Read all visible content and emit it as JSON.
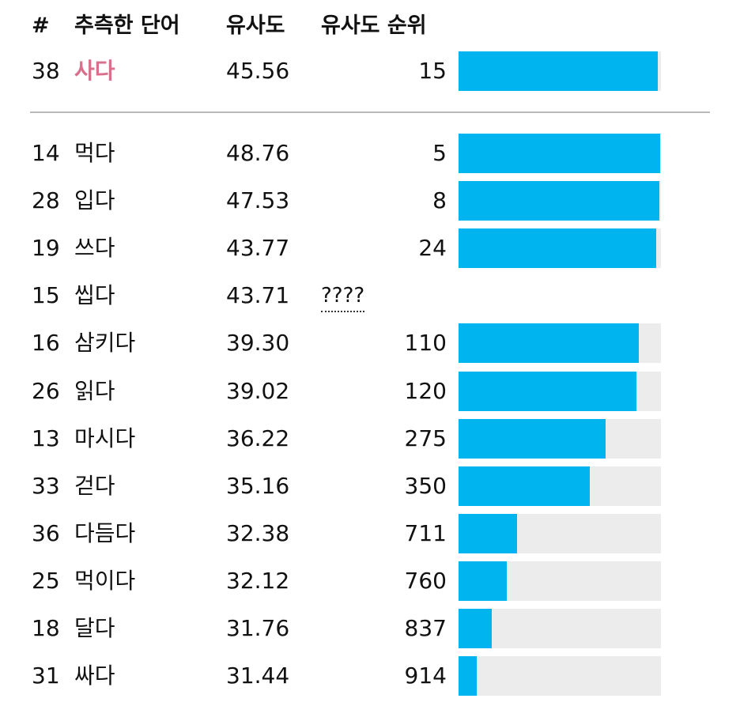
{
  "header": {
    "num": "#",
    "word": "추측한 단어",
    "similarity": "유사도",
    "rank": "유사도 순위"
  },
  "current_guess": {
    "num": "38",
    "word": "사다",
    "similarity": "45.56",
    "rank": "15",
    "bar_fraction": 0.985
  },
  "guesses": [
    {
      "num": "14",
      "word": "먹다",
      "similarity": "48.76",
      "rank": "5",
      "bar_fraction": 0.995
    },
    {
      "num": "28",
      "word": "입다",
      "similarity": "47.53",
      "rank": "8",
      "bar_fraction": 0.992
    },
    {
      "num": "19",
      "word": "쓰다",
      "similarity": "43.77",
      "rank": "24",
      "bar_fraction": 0.976
    },
    {
      "num": "15",
      "word": "씹다",
      "similarity": "43.71",
      "rank": "????",
      "bar_fraction": null
    },
    {
      "num": "16",
      "word": "삼키다",
      "similarity": "39.30",
      "rank": "110",
      "bar_fraction": 0.89
    },
    {
      "num": "26",
      "word": "읽다",
      "similarity": "39.02",
      "rank": "120",
      "bar_fraction": 0.88
    },
    {
      "num": "13",
      "word": "마시다",
      "similarity": "36.22",
      "rank": "275",
      "bar_fraction": 0.725
    },
    {
      "num": "33",
      "word": "걷다",
      "similarity": "35.16",
      "rank": "350",
      "bar_fraction": 0.65
    },
    {
      "num": "36",
      "word": "다듬다",
      "similarity": "32.38",
      "rank": "711",
      "bar_fraction": 0.29
    },
    {
      "num": "25",
      "word": "먹이다",
      "similarity": "32.12",
      "rank": "760",
      "bar_fraction": 0.24
    },
    {
      "num": "18",
      "word": "달다",
      "similarity": "31.76",
      "rank": "837",
      "bar_fraction": 0.165
    },
    {
      "num": "31",
      "word": "싸다",
      "similarity": "31.44",
      "rank": "914",
      "bar_fraction": 0.088
    }
  ],
  "colors": {
    "bar_fill": "#00b4ef",
    "bar_track": "#ececec",
    "current_word": "#d8708c",
    "divider": "#b9b9b9"
  }
}
